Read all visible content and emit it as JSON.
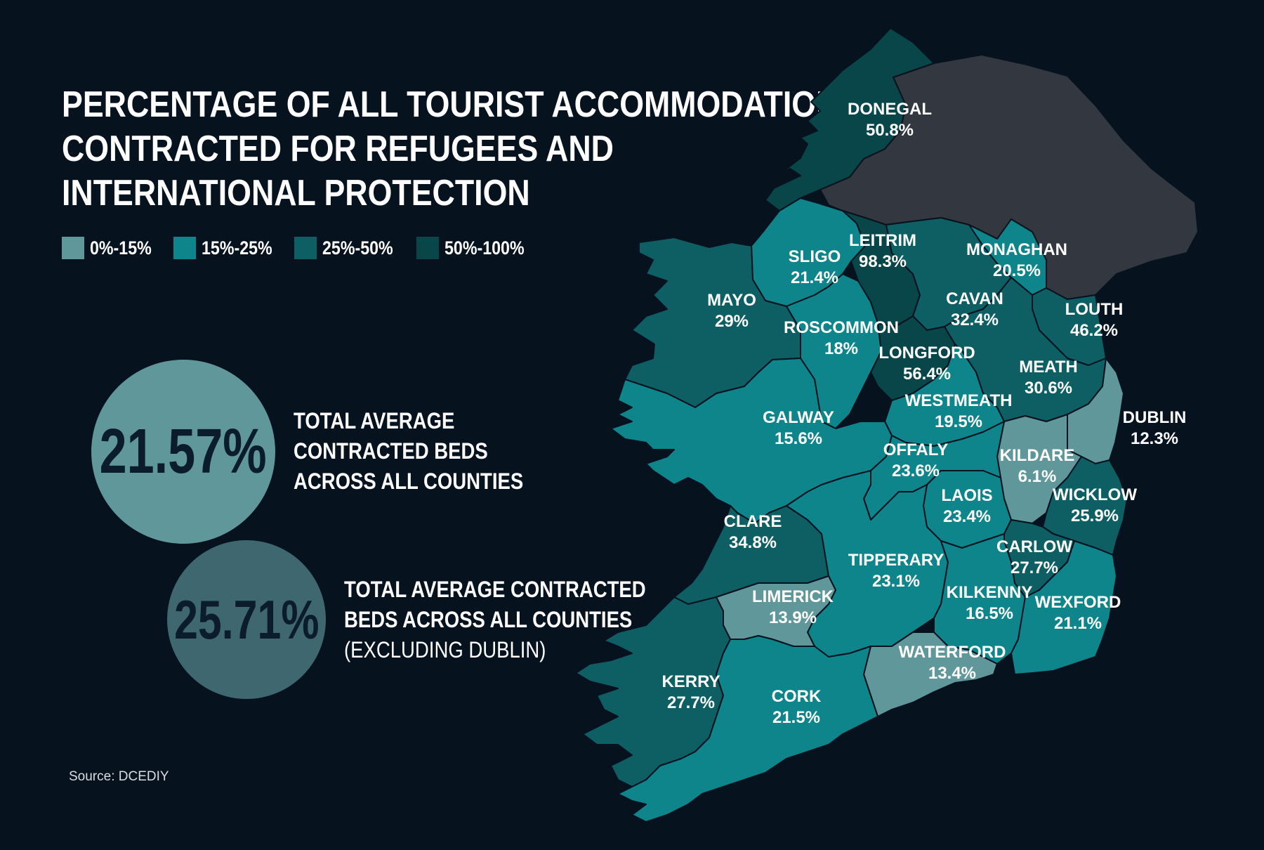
{
  "title": {
    "line1": "PERCENTAGE OF ALL TOURIST ACCOMMODATION",
    "line2": "CONTRACTED FOR REFUGEES AND",
    "line3": "INTERNATIONAL PROTECTION"
  },
  "legend": [
    {
      "label": "0%-15%",
      "color": "#5f979a"
    },
    {
      "label": "15%-25%",
      "color": "#0d858a"
    },
    {
      "label": "25%-50%",
      "color": "#0d5f64"
    },
    {
      "label": "50%-100%",
      "color": "#08464a"
    }
  ],
  "stats": {
    "all": {
      "value": "21.57%",
      "line1": "TOTAL AVERAGE",
      "line2": "CONTRACTED BEDS",
      "line3": "ACROSS ALL COUNTIES",
      "color": "#5f979a"
    },
    "ex_dublin": {
      "value": "25.71%",
      "line1": "TOTAL AVERAGE CONTRACTED",
      "line2": "BEDS ACROSS ALL COUNTIES",
      "line3": "(EXCLUDING DUBLIN)",
      "color": "#3e6770"
    }
  },
  "source": "Source: DCEDIY",
  "colors": {
    "background": "#07121f",
    "northern_ireland": "#33373f",
    "border": "#07121f"
  },
  "counties": {
    "donegal": {
      "name": "DONEGAL",
      "value": "50.8%"
    },
    "leitrim": {
      "name": "LEITRIM",
      "value": "98.3%"
    },
    "sligo": {
      "name": "SLIGO",
      "value": "21.4%"
    },
    "monaghan": {
      "name": "MONAGHAN",
      "value": "20.5%"
    },
    "mayo": {
      "name": "MAYO",
      "value": "29%"
    },
    "cavan": {
      "name": "CAVAN",
      "value": "32.4%"
    },
    "louth": {
      "name": "LOUTH",
      "value": "46.2%"
    },
    "roscommon": {
      "name": "ROSCOMMON",
      "value": "18%"
    },
    "longford": {
      "name": "LONGFORD",
      "value": "56.4%"
    },
    "meath": {
      "name": "MEATH",
      "value": "30.6%"
    },
    "westmeath": {
      "name": "WESTMEATH",
      "value": "19.5%"
    },
    "galway": {
      "name": "GALWAY",
      "value": "15.6%"
    },
    "dublin": {
      "name": "DUBLIN",
      "value": "12.3%"
    },
    "offaly": {
      "name": "OFFALY",
      "value": "23.6%"
    },
    "kildare": {
      "name": "KILDARE",
      "value": "6.1%"
    },
    "wicklow": {
      "name": "WICKLOW",
      "value": "25.9%"
    },
    "laois": {
      "name": "LAOIS",
      "value": "23.4%"
    },
    "clare": {
      "name": "CLARE",
      "value": "34.8%"
    },
    "carlow": {
      "name": "CARLOW",
      "value": "27.7%"
    },
    "tipperary": {
      "name": "TIPPERARY",
      "value": "23.1%"
    },
    "limerick": {
      "name": "LIMERICK",
      "value": "13.9%"
    },
    "kilkenny": {
      "name": "KILKENNY",
      "value": "16.5%"
    },
    "wexford": {
      "name": "WEXFORD",
      "value": "21.1%"
    },
    "waterford": {
      "name": "WATERFORD",
      "value": "13.4%"
    },
    "kerry": {
      "name": "KERRY",
      "value": "27.7%"
    },
    "cork": {
      "name": "CORK",
      "value": "21.5%"
    }
  }
}
